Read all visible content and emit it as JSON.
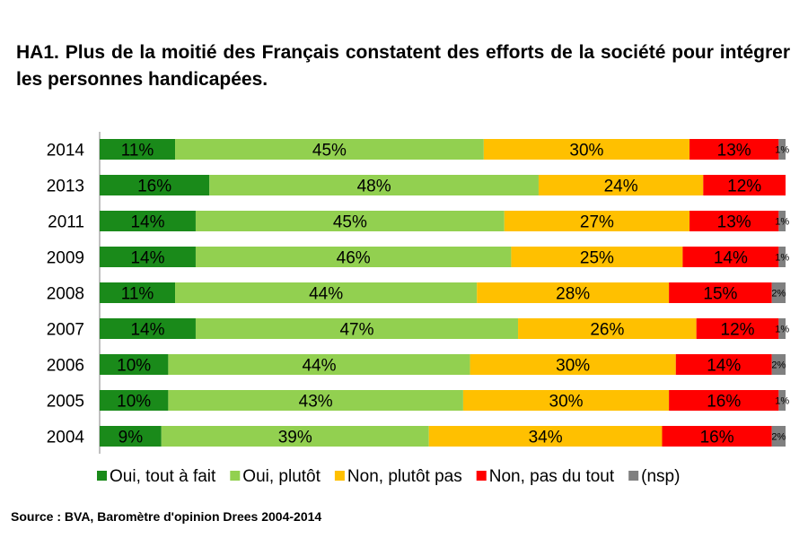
{
  "title": "HA1. Plus de la moitié des Français constatent des efforts de la société pour intégrer les personnes handicapées.",
  "source": "Source : BVA, Baromètre d'opinion Drees 2004-2014",
  "chart_data": {
    "type": "bar",
    "orientation": "horizontal",
    "stacked": true,
    "normalized": true,
    "categories": [
      "2014",
      "2013",
      "2011",
      "2009",
      "2008",
      "2007",
      "2006",
      "2005",
      "2004"
    ],
    "series": [
      {
        "name": "Oui, tout à fait",
        "color": "#1a8a1a",
        "values": [
          11,
          16,
          14,
          14,
          11,
          14,
          10,
          10,
          9
        ],
        "labels": [
          "11%",
          "16%",
          "14%",
          "14%",
          "11%",
          "14%",
          "10%",
          "10%",
          "9%"
        ]
      },
      {
        "name": "Oui, plutôt",
        "color": "#92d050",
        "values": [
          45,
          48,
          45,
          46,
          44,
          47,
          44,
          43,
          39
        ],
        "labels": [
          "45%",
          "48%",
          "45%",
          "46%",
          "44%",
          "47%",
          "44%",
          "43%",
          "39%"
        ]
      },
      {
        "name": "Non, plutôt pas",
        "color": "#ffc000",
        "values": [
          30,
          24,
          27,
          25,
          28,
          26,
          30,
          30,
          34
        ],
        "labels": [
          "30%",
          "24%",
          "27%",
          "25%",
          "28%",
          "26%",
          "30%",
          "30%",
          "34%"
        ]
      },
      {
        "name": "Non, pas du tout",
        "color": "#ff0000",
        "values": [
          13,
          12,
          13,
          14,
          15,
          12,
          14,
          16,
          16
        ],
        "labels": [
          "13%",
          "12%",
          "13%",
          "14%",
          "15%",
          "12%",
          "14%",
          "16%",
          "16%"
        ]
      },
      {
        "name": "(nsp)",
        "color": "#808080",
        "values": [
          1,
          0,
          1,
          1,
          2,
          1,
          2,
          1,
          2
        ],
        "labels": [
          "1%",
          "",
          "1%",
          "1%",
          "2%",
          "1%",
          "2%",
          "1%",
          "2%"
        ]
      }
    ],
    "legend_position": "bottom",
    "grid": false
  }
}
